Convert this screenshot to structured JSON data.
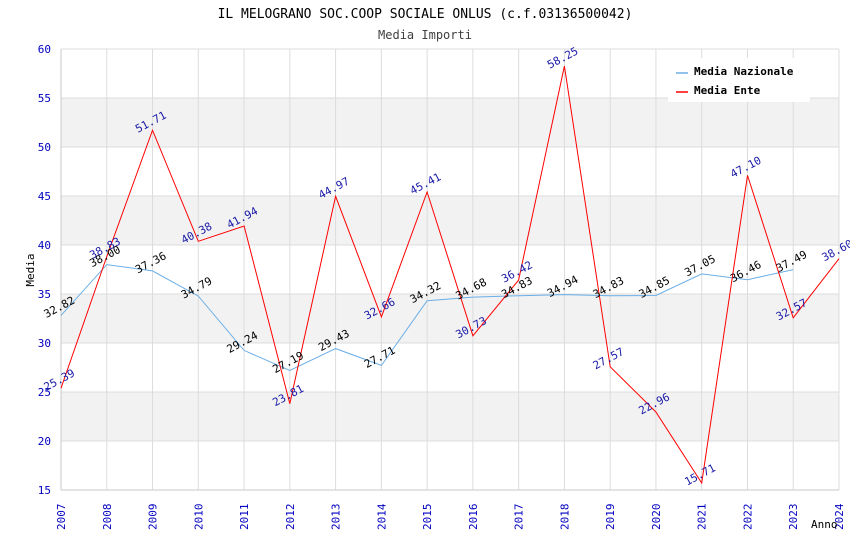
{
  "chart_data": {
    "type": "line",
    "title": "IL MELOGRANO SOC.COOP SOCIALE ONLUS (c.f.03136500042)",
    "subtitle": "Media Importi",
    "xlabel": "Anno",
    "ylabel": "Media",
    "ylim": [
      15,
      60
    ],
    "yticks": [
      15,
      20,
      25,
      30,
      35,
      40,
      45,
      50,
      55,
      60
    ],
    "categories": [
      "2007",
      "2008",
      "2009",
      "2010",
      "2011",
      "2012",
      "2013",
      "2014",
      "2015",
      "2016",
      "2017",
      "2018",
      "2019",
      "2020",
      "2021",
      "2022",
      "2023",
      "2024"
    ],
    "grid": true,
    "legend_position": "top-right",
    "series": [
      {
        "name": "Media Nazionale",
        "color": "#6aaee6",
        "label_color": "#000000",
        "values": [
          32.82,
          38.0,
          37.36,
          34.79,
          29.24,
          27.19,
          29.43,
          27.71,
          34.32,
          34.68,
          34.83,
          34.94,
          34.83,
          34.85,
          37.05,
          36.46,
          37.49,
          null
        ],
        "labels": [
          "32.82",
          "38.00",
          "37.36",
          "34.79",
          "29.24",
          "27.19",
          "29.43",
          "27.71",
          "34.32",
          "34.68",
          "34.83",
          "34.94",
          "34.83",
          "34.85",
          "37.05",
          "36.46",
          "37.49",
          ""
        ]
      },
      {
        "name": "Media Ente",
        "color": "#ff0000",
        "label_color": "#1a1aa8",
        "values": [
          25.39,
          38.83,
          51.71,
          40.38,
          41.94,
          23.81,
          44.97,
          32.66,
          45.41,
          30.73,
          36.42,
          58.25,
          27.57,
          22.96,
          15.71,
          47.1,
          32.57,
          38.6
        ],
        "labels": [
          "25.39",
          "38.83",
          "51.71",
          "40.38",
          "41.94",
          "23.81",
          "44.97",
          "32.66",
          "45.41",
          "30.73",
          "36.42",
          "58.25",
          "27.57",
          "22.96",
          "15.71",
          "47.10",
          "32.57",
          "38.60"
        ]
      }
    ]
  },
  "colors": {
    "band": "#f2f2f2",
    "grid": "#dcdcdc",
    "axis_tick_text": "#0000c0",
    "axis": "#c8c8c8"
  }
}
